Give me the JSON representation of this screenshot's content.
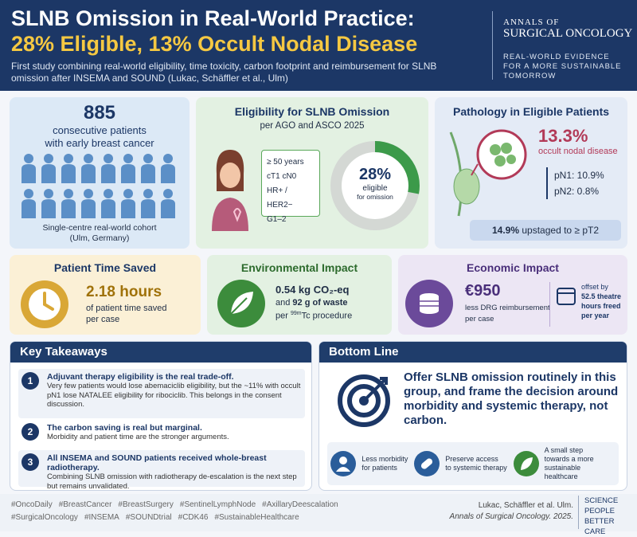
{
  "header": {
    "title_line1": "SLNB Omission in Real-World Practice:",
    "title_line2": "28% Eligible, 13% Occult Nodal Disease",
    "subtitle": "First study combining real-world eligibility, time toxicity, carbon footprint and reimbursement for SLNB omission after INSEMA and SOUND (Lukac, Schäffler et al., Ulm)",
    "journal_line1": "Annals of",
    "journal_line2": "Surgical Oncology",
    "tagline": [
      "REAL-WORLD EVIDENCE",
      "FOR A MORE SUSTAINABLE",
      "TOMORROW"
    ]
  },
  "cohort": {
    "count": "885",
    "line1": "consecutive patients",
    "line2": "with early breast cancer",
    "note_line1": "Single-centre real-world cohort",
    "note_line2": "(Ulm, Germany)"
  },
  "eligibility": {
    "title": "Eligibility for SLNB Omission",
    "subtitle": "per AGO and ASCO 2025",
    "criteria": [
      "≥ 50 years",
      "cT1 cN0",
      "HR+ / HER2−",
      "G1–2"
    ],
    "percent": {
      "value": 28,
      "label": "28%"
    },
    "caption_line1": "eligible",
    "caption_line2": "for omission"
  },
  "pathology": {
    "title": "Pathology in Eligible Patients",
    "rate": "13.3%",
    "rate_caption": "occult nodal disease",
    "pn1": "pN1: 10.9%",
    "pn2": "pN2: 0.8%",
    "upstage_value": "14.9%",
    "upstage_text": "upstaged to ≥ pT2"
  },
  "time": {
    "title": "Patient Time Saved",
    "value": "2.18 hours",
    "line1": "of patient time saved",
    "line2": "per case"
  },
  "environment": {
    "title": "Environmental Impact",
    "value": "0.54 kg CO₂-eq",
    "and": "and",
    "waste": "92 g of waste",
    "per": "per",
    "isotope": "99m",
    "procedure": "Tc procedure"
  },
  "economic": {
    "title": "Economic Impact",
    "value": "€950",
    "line1": "less DRG reimbursement",
    "line2": "per case",
    "offset_line1": "offset by",
    "offset_line2": "52.5 theatre",
    "offset_line3": "hours freed",
    "offset_line4": "per year"
  },
  "takeaways": {
    "title": "Key Takeaways",
    "items": [
      {
        "number": "1",
        "heading": "Adjuvant therapy eligibility is the real trade-off.",
        "text": "Very few patients would lose abemaciclib eligibility, but the ~11% with occult pN1 lose NATALEE eligibility for ribociclib. This belongs in the consent discussion."
      },
      {
        "number": "2",
        "heading": "The carbon saving is real but marginal.",
        "text": "Morbidity and patient time are the stronger arguments."
      },
      {
        "number": "3",
        "heading": "All INSEMA and SOUND patients received whole-breast radiotherapy.",
        "text": "Combining SLNB omission with radiotherapy de-escalation is the next step but remains unvalidated."
      }
    ]
  },
  "bottom_line": {
    "title": "Bottom Line",
    "message": "Offer SLNB omission routinely in this group, and frame the decision around morbidity and systemic therapy, not carbon.",
    "benefits": [
      {
        "line1": "Less morbidity",
        "line2": "for patients"
      },
      {
        "line1": "Preserve access",
        "line2": "to systemic therapy"
      },
      {
        "line1": "A small step",
        "line2": "towards a more sustainable healthcare"
      }
    ]
  },
  "footer": {
    "hashtags": [
      "#OncoDaily",
      "#BreastCancer",
      "#BreastSurgery",
      "#SentinelLymphNode",
      "#AxillaryDeescalation",
      "#SurgicalOncology",
      "#INSEMA",
      "#SOUNDtrial",
      "#CDK46",
      "#SustainableHealthcare"
    ],
    "citation_line1": "Lukac, Schäffler et al. Ulm.",
    "citation_line2": "Annals of Surgical Oncology. 2025.",
    "slogan": [
      "SCIENCE",
      "PEOPLE",
      "BETTER CARE"
    ]
  }
}
